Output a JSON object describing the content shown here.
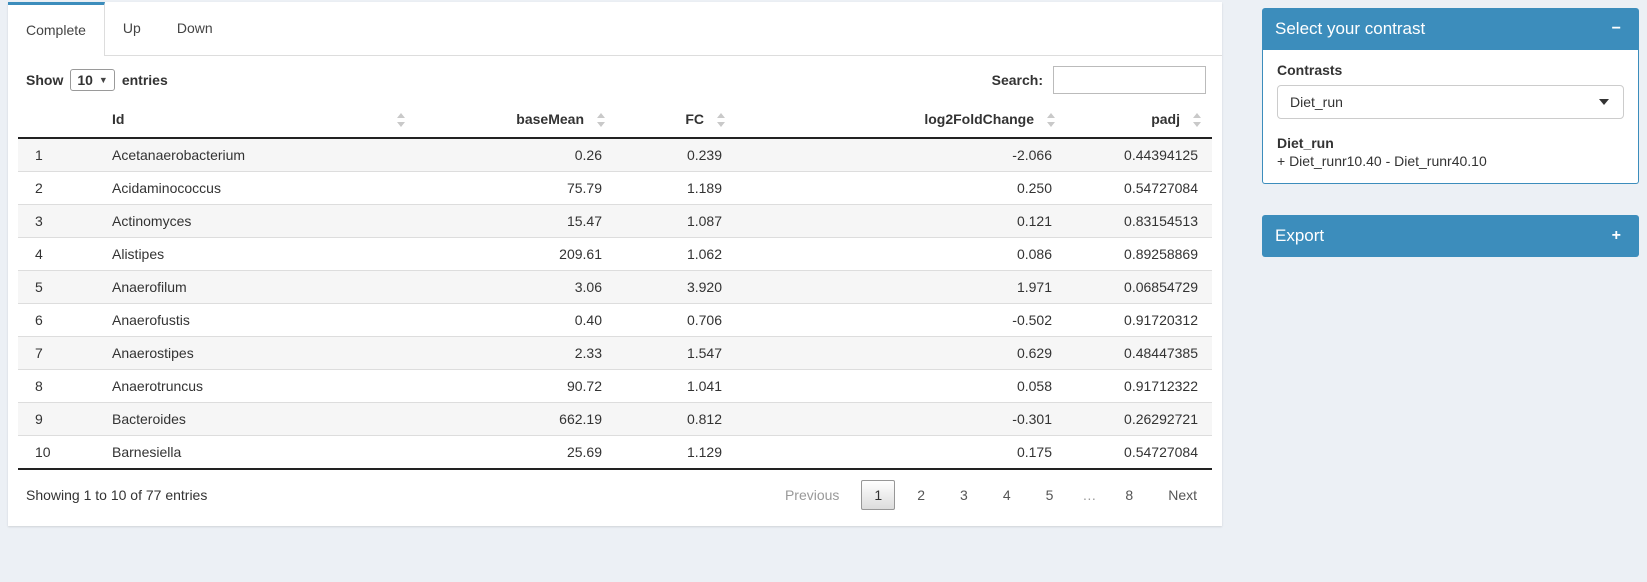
{
  "colors": {
    "primary": "#3c8dbc",
    "page_bg": "#ecf0f5",
    "stripe": "#f6f6f6"
  },
  "tabs": [
    {
      "label": "Complete",
      "active": true
    },
    {
      "label": "Up",
      "active": false
    },
    {
      "label": "Down",
      "active": false
    }
  ],
  "length_control": {
    "prefix": "Show",
    "value": "10",
    "suffix": "entries"
  },
  "search": {
    "label": "Search:",
    "value": "",
    "placeholder": ""
  },
  "table": {
    "columns": [
      {
        "key": "num",
        "label": "",
        "sortable": false,
        "align": "left"
      },
      {
        "key": "id",
        "label": "Id",
        "sortable": true,
        "align": "left"
      },
      {
        "key": "basemean",
        "label": "baseMean",
        "sortable": true,
        "align": "right"
      },
      {
        "key": "fc",
        "label": "FC",
        "sortable": true,
        "align": "right"
      },
      {
        "key": "log2fc",
        "label": "log2FoldChange",
        "sortable": true,
        "align": "right"
      },
      {
        "key": "padj",
        "label": "padj",
        "sortable": true,
        "align": "right"
      }
    ],
    "rows": [
      {
        "num": "1",
        "id": "Acetanaerobacterium",
        "basemean": "0.26",
        "fc": "0.239",
        "log2fc": "-2.066",
        "padj": "0.44394125"
      },
      {
        "num": "2",
        "id": "Acidaminococcus",
        "basemean": "75.79",
        "fc": "1.189",
        "log2fc": "0.250",
        "padj": "0.54727084"
      },
      {
        "num": "3",
        "id": "Actinomyces",
        "basemean": "15.47",
        "fc": "1.087",
        "log2fc": "0.121",
        "padj": "0.83154513"
      },
      {
        "num": "4",
        "id": "Alistipes",
        "basemean": "209.61",
        "fc": "1.062",
        "log2fc": "0.086",
        "padj": "0.89258869"
      },
      {
        "num": "5",
        "id": "Anaerofilum",
        "basemean": "3.06",
        "fc": "3.920",
        "log2fc": "1.971",
        "padj": "0.06854729"
      },
      {
        "num": "6",
        "id": "Anaerofustis",
        "basemean": "0.40",
        "fc": "0.706",
        "log2fc": "-0.502",
        "padj": "0.91720312"
      },
      {
        "num": "7",
        "id": "Anaerostipes",
        "basemean": "2.33",
        "fc": "1.547",
        "log2fc": "0.629",
        "padj": "0.48447385"
      },
      {
        "num": "8",
        "id": "Anaerotruncus",
        "basemean": "90.72",
        "fc": "1.041",
        "log2fc": "0.058",
        "padj": "0.91712322"
      },
      {
        "num": "9",
        "id": "Bacteroides",
        "basemean": "662.19",
        "fc": "0.812",
        "log2fc": "-0.301",
        "padj": "0.26292721"
      },
      {
        "num": "10",
        "id": "Barnesiella",
        "basemean": "25.69",
        "fc": "1.129",
        "log2fc": "0.175",
        "padj": "0.54727084"
      }
    ]
  },
  "footer": {
    "info": "Showing 1 to 10 of 77 entries",
    "pagination": {
      "previous": "Previous",
      "pages": [
        {
          "label": "1",
          "active": true
        },
        {
          "label": "2"
        },
        {
          "label": "3"
        },
        {
          "label": "4"
        },
        {
          "label": "5"
        },
        {
          "label": "…",
          "ellipsis": true
        },
        {
          "label": "8"
        }
      ],
      "next": "Next"
    }
  },
  "sidebar": {
    "contrast_box": {
      "title": "Select your contrast",
      "collapse_icon": "−",
      "field_label": "Contrasts",
      "selected_contrast": "Diet_run",
      "contrast_name": "Diet_run",
      "contrast_detail": "+ Diet_runr10.40 - Diet_runr40.10"
    },
    "export_box": {
      "title": "Export",
      "collapse_icon": "+"
    }
  }
}
